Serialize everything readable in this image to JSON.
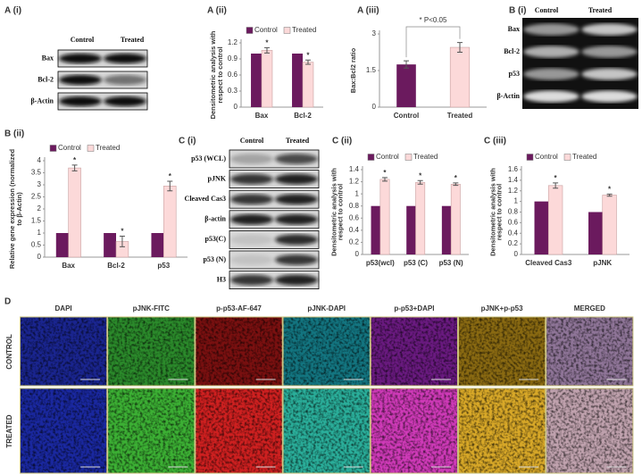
{
  "chart_data": [
    {
      "type": "bar",
      "panel": "A (ii)",
      "ylabel": "Densitometric analysis with respect to control",
      "categories": [
        "Bax",
        "Bcl-2"
      ],
      "series": [
        {
          "name": "Control",
          "color": "#6b1a5e",
          "values": [
            1,
            1
          ]
        },
        {
          "name": "Treated",
          "color": "#fcd9d9",
          "values": [
            1.06,
            0.84
          ],
          "errors": [
            0.05,
            0.04
          ],
          "significance": [
            "*",
            "*"
          ]
        }
      ],
      "ylim": [
        0,
        1.2
      ],
      "yticks": [
        0,
        0.3,
        0.6,
        0.9,
        1.2
      ],
      "legend": "top"
    },
    {
      "type": "bar",
      "panel": "A (iii)",
      "ylabel": "Bax:Bcl2 ratio",
      "categories": [
        "Control",
        "Treated"
      ],
      "values": [
        1.75,
        2.45
      ],
      "errors": [
        0.15,
        0.2
      ],
      "colors": [
        "#6b1a5e",
        "#fcd9d9"
      ],
      "annotation": "* P<0.05",
      "ylim": [
        0,
        3
      ],
      "yticks": [
        0,
        1.5,
        3
      ]
    },
    {
      "type": "bar",
      "panel": "B (ii)",
      "ylabel": "Relative gene expression (normalized to β-Actin)",
      "categories": [
        "Bax",
        "Bcl-2",
        "p53"
      ],
      "series": [
        {
          "name": "Control",
          "color": "#6b1a5e",
          "values": [
            1,
            1,
            1
          ]
        },
        {
          "name": "Treated",
          "color": "#fcd9d9",
          "values": [
            3.7,
            0.65,
            2.95
          ],
          "errors": [
            0.12,
            0.22,
            0.2
          ],
          "significance": [
            "*",
            "*",
            "*"
          ]
        }
      ],
      "ylim": [
        0,
        4
      ],
      "yticks": [
        0,
        0.5,
        1,
        1.5,
        2,
        2.5,
        3,
        3.5,
        4
      ],
      "legend": "top"
    },
    {
      "type": "bar",
      "panel": "C (ii)",
      "ylabel": "Densitometric analysis with respect to control",
      "categories": [
        "p53(wcl)",
        "p53 (C)",
        "p53 (N)"
      ],
      "series": [
        {
          "name": "Control",
          "color": "#6b1a5e",
          "values": [
            0.8,
            0.8,
            0.8
          ]
        },
        {
          "name": "Treated",
          "color": "#fcd9d9",
          "values": [
            1.24,
            1.19,
            1.16
          ],
          "errors": [
            0.03,
            0.03,
            0.02
          ],
          "significance": [
            "*",
            "*",
            "*"
          ]
        }
      ],
      "ylim": [
        0,
        1.4
      ],
      "yticks": [
        0,
        0.2,
        0.4,
        0.6,
        0.8,
        1,
        1.2,
        1.4
      ],
      "legend": "top"
    },
    {
      "type": "bar",
      "panel": "C (iii)",
      "ylabel": "Densitometric analysis with respect to control",
      "categories": [
        "Cleaved Cas3",
        "pJNK"
      ],
      "series": [
        {
          "name": "Control",
          "color": "#6b1a5e",
          "values": [
            1,
            0.8
          ]
        },
        {
          "name": "Treated",
          "color": "#fcd9d9",
          "values": [
            1.3,
            1.12
          ],
          "errors": [
            0.05,
            0.02
          ],
          "significance": [
            "*",
            "*"
          ]
        }
      ],
      "ylim": [
        0,
        1.6
      ],
      "yticks": [
        0,
        0.2,
        0.4,
        0.6,
        0.8,
        1,
        1.2,
        1.4,
        1.6
      ],
      "legend": "top"
    }
  ],
  "blots": [
    {
      "panel": "A (i)",
      "columns": [
        "Control",
        "Treated"
      ],
      "rows": [
        "Bax",
        "Bcl-2",
        "β-Actin"
      ]
    },
    {
      "panel": "B (i)",
      "columns": [
        "Control",
        "Treated"
      ],
      "rows": [
        "Bax",
        "Bcl-2",
        "p53",
        "β-Actin"
      ]
    },
    {
      "panel": "C (i)",
      "columns": [
        "Control",
        "Treated"
      ],
      "rows": [
        "p53 (WCL)",
        "pJNK",
        "Cleaved Cas3",
        "β-actin",
        "p53(C)",
        "p53 (N)",
        "H3"
      ]
    }
  ],
  "microscopy": {
    "panel": "D",
    "columns": [
      "DAPI",
      "pJNK-FITC",
      "p-p53-AF-647",
      "pJNK-DAPI",
      "p-p53+DAPI",
      "pJNK+p-p53",
      "MERGED"
    ],
    "rows": [
      "CONTROL",
      "TREATED"
    ]
  }
}
